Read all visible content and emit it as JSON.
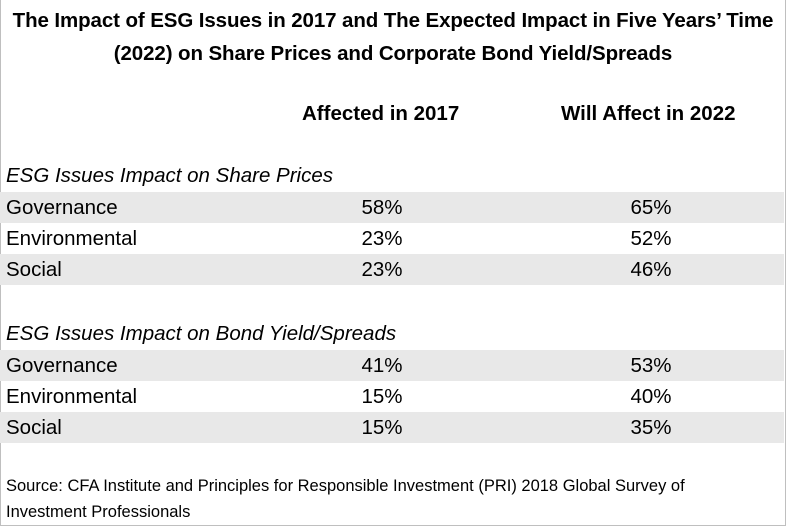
{
  "title_line1": "The Impact of ESG Issues in 2017 and The Expected Impact in Five Years’ Time",
  "title_line2": "(2022) on Share Prices and Corporate Bond Yield/Spreads",
  "columns": [
    "Affected in 2017",
    "Will Affect in 2022"
  ],
  "sections": [
    {
      "title": "ESG Issues Impact on Share Prices",
      "rows": [
        {
          "label": "Governance",
          "v2017": "58%",
          "v2022": "65%"
        },
        {
          "label": "Environmental",
          "v2017": "23%",
          "v2022": "52%"
        },
        {
          "label": "Social",
          "v2017": "23%",
          "v2022": "46%"
        }
      ]
    },
    {
      "title": "ESG Issues Impact on Bond Yield/Spreads",
      "rows": [
        {
          "label": "Governance",
          "v2017": "41%",
          "v2022": "53%"
        },
        {
          "label": "Environmental",
          "v2017": "15%",
          "v2022": "40%"
        },
        {
          "label": "Social",
          "v2017": "15%",
          "v2022": "35%"
        }
      ]
    }
  ],
  "source": "Source: CFA Institute and Principles for Responsible Investment (PRI) 2018 Global Survey of Investment Professionals",
  "colors": {
    "shaded_row": "#e8e8e8",
    "border": "#bfbfbf"
  },
  "chart_data": {
    "type": "table",
    "title": "The Impact of ESG Issues in 2017 and The Expected Impact in Five Years’ Time (2022) on Share Prices and Corporate Bond Yield/Spreads",
    "columns": [
      "Affected in 2017",
      "Will Affect in 2022"
    ],
    "groups": [
      {
        "name": "ESG Issues Impact on Share Prices",
        "categories": [
          "Governance",
          "Environmental",
          "Social"
        ],
        "series": [
          {
            "name": "Affected in 2017",
            "values": [
              58,
              23,
              23
            ]
          },
          {
            "name": "Will Affect in 2022",
            "values": [
              65,
              52,
              46
            ]
          }
        ]
      },
      {
        "name": "ESG Issues Impact on Bond Yield/Spreads",
        "categories": [
          "Governance",
          "Environmental",
          "Social"
        ],
        "series": [
          {
            "name": "Affected in 2017",
            "values": [
              41,
              15,
              15
            ]
          },
          {
            "name": "Will Affect in 2022",
            "values": [
              53,
              40,
              35
            ]
          }
        ]
      }
    ]
  }
}
